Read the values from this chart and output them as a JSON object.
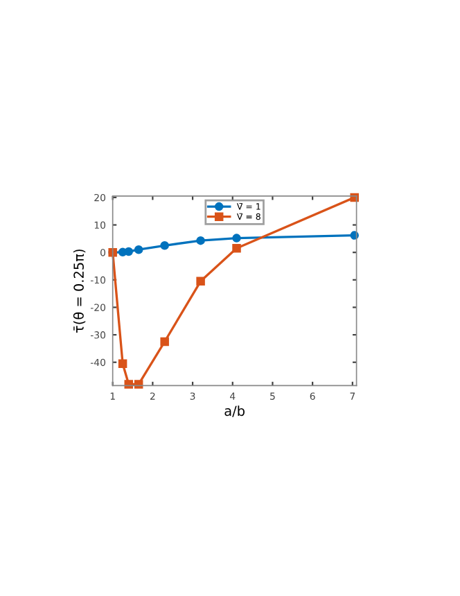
{
  "chart_data": {
    "type": "line",
    "xlabel": "a/b",
    "ylabel": "τ̄(θ = 0.25π)",
    "x": [
      1,
      1.25,
      1.4,
      1.65,
      2.3,
      3.2,
      4.1,
      7.05
    ],
    "series": [
      {
        "name": "V̄ = 1",
        "color": "#0072bd",
        "values": [
          0,
          0.1,
          0.3,
          1,
          2.5,
          4.3,
          5.2,
          6.2
        ],
        "marker": "circle"
      },
      {
        "name": "V̄ = 8",
        "color": "#d95319",
        "values": [
          0,
          -40.5,
          -48,
          -48,
          -32.5,
          -10.5,
          1.5,
          20
        ],
        "marker": "square"
      }
    ],
    "xlim": [
      1,
      7.1
    ],
    "ylim": [
      -48.5,
      20.5
    ],
    "xticks": [
      1,
      2,
      3,
      4,
      5,
      6,
      7
    ],
    "yticks": [
      -40,
      -30,
      -20,
      -10,
      0,
      10,
      20
    ],
    "grid": false,
    "legend": "top center",
    "line_style": "solid"
  }
}
